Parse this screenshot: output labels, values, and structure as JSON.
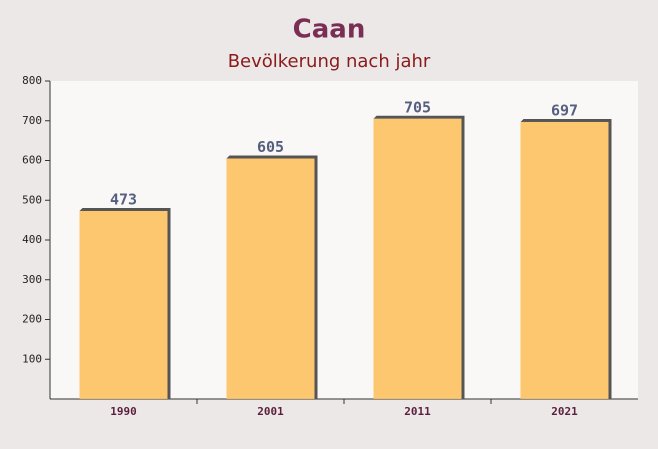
{
  "chart_data": {
    "type": "bar",
    "title": "Caan",
    "subtitle": "Bevölkerung nach jahr",
    "categories": [
      "1990",
      "2001",
      "2011",
      "2021"
    ],
    "values": [
      473,
      605,
      705,
      697
    ],
    "color": "#fcc15e",
    "ylim": [
      0,
      800
    ],
    "yticks": [
      100,
      200,
      300,
      400,
      500,
      600,
      700,
      800
    ],
    "grid": false
  }
}
